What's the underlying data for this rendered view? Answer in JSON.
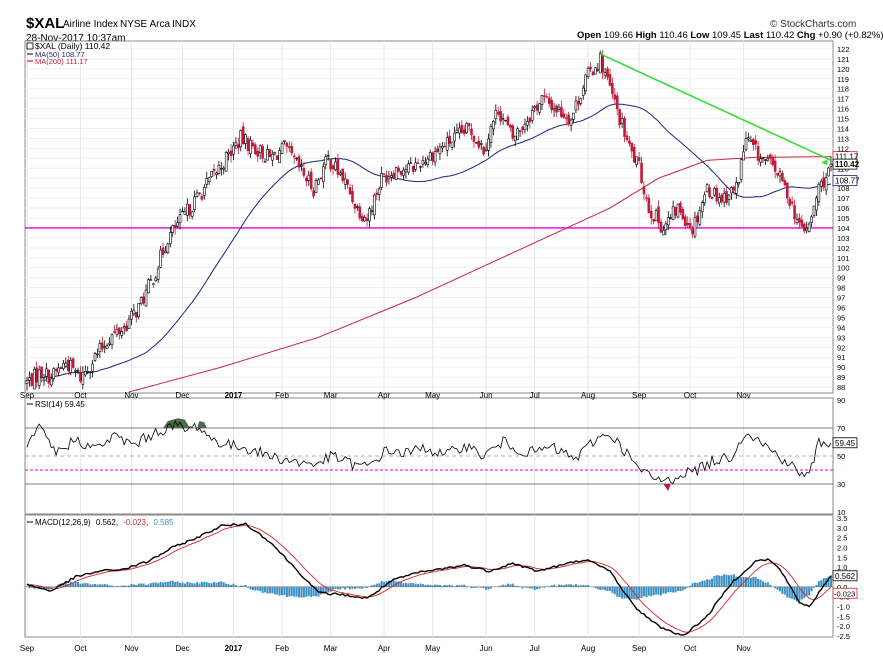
{
  "header": {
    "symbol": "$XAL",
    "name": "Airline Index",
    "exchange": "NYSE Arca",
    "index_tag": "INDX",
    "timestamp": "28-Nov-2017 10:37am",
    "brand": "© StockCharts.com",
    "ohlc": {
      "open_label": "Open",
      "open": "109.66",
      "high_label": "High",
      "high": "110.46",
      "low_label": "Low",
      "low": "109.45",
      "last_label": "Last",
      "last": "110.42",
      "chg_label": "Chg",
      "chg": "+0.90 (+0.82%)"
    }
  },
  "legend": {
    "price": "$XAL (Daily) 110.42",
    "ma50": "MA(50) 108.77",
    "ma200": "MA(200) 111.17",
    "rsi": "RSI(14) 59.45",
    "macd_prefix": "MACD(12,26,9)",
    "macd_val": "0.562",
    "macd_signal": "-0.023",
    "macd_hist": "0.585"
  },
  "x_labels": [
    "Sep",
    "Oct",
    "Nov",
    "Dec",
    "2017",
    "Feb",
    "Mar",
    "Apr",
    "May",
    "Jun",
    "Jul",
    "Aug",
    "Sep",
    "Oct",
    "Nov"
  ],
  "colors": {
    "up": "#000000",
    "down": "#c21b3a",
    "ma50": "#1a237e",
    "ma200": "#c8243a",
    "trend": "#33dd33",
    "support": "#e000e0",
    "rsi_line": "#000000",
    "macd": "#000000",
    "signal": "#d62728",
    "hist": "#3b90c4",
    "overbought": "#4a6b4a"
  },
  "chart_data": [
    {
      "type": "line",
      "title": "$XAL (Daily) 110.42",
      "description_series": "daily OHLC candlesticks with 50 and 200 day moving averages",
      "ylim": [
        87.5,
        122.5
      ],
      "y_ticks": [
        88,
        89,
        90,
        91,
        92,
        93,
        94,
        95,
        96,
        97,
        98,
        99,
        100,
        101,
        102,
        103,
        104,
        105,
        106,
        107,
        108,
        109,
        110,
        111,
        112,
        113,
        114,
        115,
        116,
        117,
        118,
        119,
        120,
        121,
        122
      ],
      "x_labels": [
        "Sep",
        "Oct",
        "Nov",
        "Dec",
        "2017",
        "Feb",
        "Mar",
        "Apr",
        "May",
        "Jun",
        "Jul",
        "Aug",
        "Sep",
        "Oct",
        "Nov"
      ],
      "price_anchors": [
        [
          0,
          88.5
        ],
        [
          6,
          89.5
        ],
        [
          10,
          89
        ],
        [
          16,
          90.5
        ],
        [
          22,
          89
        ],
        [
          28,
          91
        ],
        [
          34,
          93
        ],
        [
          40,
          94
        ],
        [
          46,
          96
        ],
        [
          52,
          99
        ],
        [
          58,
          103
        ],
        [
          64,
          105
        ],
        [
          70,
          107
        ],
        [
          76,
          109
        ],
        [
          82,
          111
        ],
        [
          88,
          113
        ],
        [
          94,
          112
        ],
        [
          100,
          111
        ],
        [
          106,
          112
        ],
        [
          112,
          110
        ],
        [
          118,
          108
        ],
        [
          124,
          111
        ],
        [
          130,
          109
        ],
        [
          136,
          106
        ],
        [
          140,
          105
        ],
        [
          146,
          109
        ],
        [
          152,
          110
        ],
        [
          158,
          110
        ],
        [
          164,
          111
        ],
        [
          170,
          112
        ],
        [
          176,
          113
        ],
        [
          182,
          114
        ],
        [
          188,
          112
        ],
        [
          194,
          116
        ],
        [
          200,
          113
        ],
        [
          206,
          115
        ],
        [
          212,
          117
        ],
        [
          218,
          116
        ],
        [
          224,
          115
        ],
        [
          230,
          119
        ],
        [
          236,
          121
        ],
        [
          240,
          118
        ],
        [
          244,
          115
        ],
        [
          248,
          112
        ],
        [
          252,
          110
        ],
        [
          256,
          106
        ],
        [
          262,
          104
        ],
        [
          268,
          106
        ],
        [
          274,
          104
        ],
        [
          280,
          108
        ],
        [
          286,
          107
        ],
        [
          292,
          108
        ],
        [
          296,
          113
        ],
        [
          302,
          111
        ],
        [
          308,
          110
        ],
        [
          314,
          107
        ],
        [
          318,
          104
        ],
        [
          322,
          104
        ],
        [
          326,
          108
        ],
        [
          331,
          110
        ]
      ],
      "support_level": 104,
      "trendline": [
        [
          236,
          121.5
        ],
        [
          331,
          110.8
        ]
      ],
      "last": 110.42,
      "ma50_last": 108.77,
      "ma200_last": 111.17
    },
    {
      "type": "line",
      "title": "RSI(14) 59.45",
      "ylim": [
        10,
        90
      ],
      "y_ticks": [
        10,
        30,
        50,
        70,
        90
      ],
      "levels": [
        30,
        70
      ],
      "dashed_levels": [
        40,
        50
      ],
      "last": 59.45
    },
    {
      "type": "line",
      "title": "MACD(12,26,9)",
      "ylim": [
        -2.5,
        3.5
      ],
      "y_ticks": [
        -2.5,
        -2.0,
        -1.5,
        -1.0,
        -0.5,
        0.0,
        0.5,
        1.0,
        1.5,
        2.0,
        2.5,
        3.0,
        3.5
      ],
      "macd_anchors": [
        [
          0,
          0.1
        ],
        [
          10,
          -0.2
        ],
        [
          20,
          0.5
        ],
        [
          30,
          0.8
        ],
        [
          40,
          0.9
        ],
        [
          50,
          1.3
        ],
        [
          60,
          2.0
        ],
        [
          70,
          2.5
        ],
        [
          80,
          3.1
        ],
        [
          90,
          3.2
        ],
        [
          100,
          2.3
        ],
        [
          110,
          1.0
        ],
        [
          120,
          -0.3
        ],
        [
          130,
          -0.4
        ],
        [
          140,
          -0.6
        ],
        [
          150,
          0.3
        ],
        [
          160,
          0.7
        ],
        [
          170,
          0.9
        ],
        [
          180,
          1.1
        ],
        [
          190,
          0.8
        ],
        [
          200,
          1.2
        ],
        [
          210,
          0.8
        ],
        [
          220,
          1.1
        ],
        [
          230,
          1.4
        ],
        [
          240,
          0.8
        ],
        [
          250,
          -1.0
        ],
        [
          260,
          -2.0
        ],
        [
          270,
          -2.5
        ],
        [
          280,
          -1.5
        ],
        [
          290,
          0.2
        ],
        [
          300,
          1.3
        ],
        [
          305,
          1.4
        ],
        [
          310,
          0.9
        ],
        [
          318,
          -0.8
        ],
        [
          322,
          -1.0
        ],
        [
          331,
          0.562
        ]
      ],
      "macd_last": 0.562,
      "signal_last": -0.023,
      "hist_last": 0.585
    }
  ]
}
